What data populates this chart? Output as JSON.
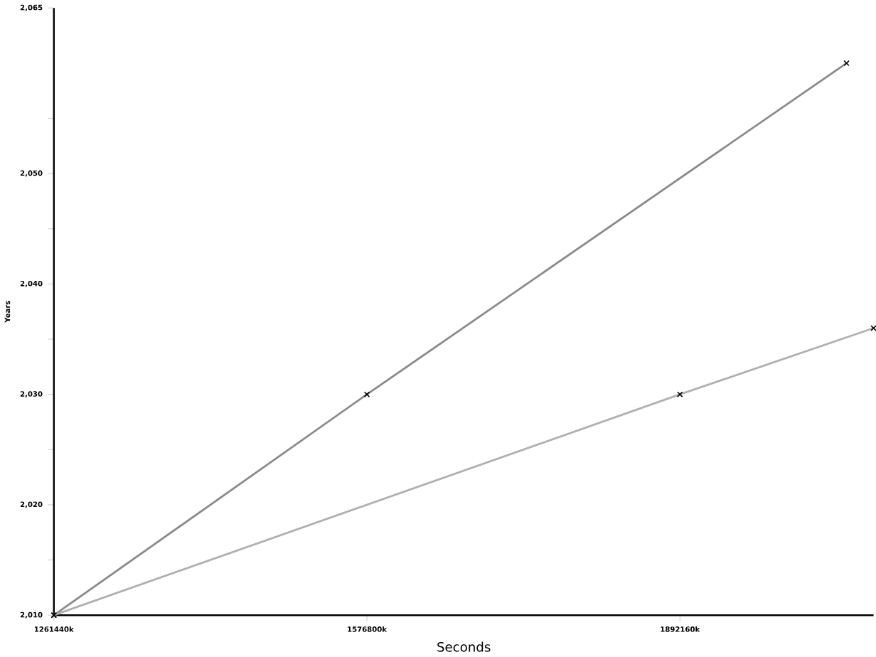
{
  "chart_data": {
    "type": "line",
    "xlabel": "Seconds",
    "ylabel": "Years",
    "x": [
      1261440,
      1576800,
      2060000
    ],
    "series": [
      {
        "color": "#8a8a8a",
        "values": [
          2010,
          2030,
          2060
        ]
      },
      {
        "color": "#b0b0b0",
        "x": [
          1261440,
          1892160,
          2087240
        ],
        "values": [
          2010,
          2030,
          2036
        ]
      }
    ],
    "xlim": [
      1261440,
      2087240
    ],
    "ylim": [
      2010,
      2065
    ],
    "xticks": [
      {
        "value": 1261440,
        "label": "1261440k"
      },
      {
        "value": 1576800,
        "label": "1576800k"
      },
      {
        "value": 1892160,
        "label": "1892160k"
      }
    ],
    "yticks": [
      {
        "value": 2010,
        "label": "2,010"
      },
      {
        "value": 2015,
        "label": null
      },
      {
        "value": 2020,
        "label": "2,020"
      },
      {
        "value": 2025,
        "label": null
      },
      {
        "value": 2030,
        "label": "2,030"
      },
      {
        "value": 2035,
        "label": null
      },
      {
        "value": 2040,
        "label": "2,040"
      },
      {
        "value": 2045,
        "label": null
      },
      {
        "value": 2050,
        "label": "2,050"
      },
      {
        "value": 2055,
        "label": null
      },
      {
        "value": 2065,
        "label": "2,065"
      }
    ],
    "grid": false,
    "marker": "cross",
    "line_style": "solid"
  }
}
